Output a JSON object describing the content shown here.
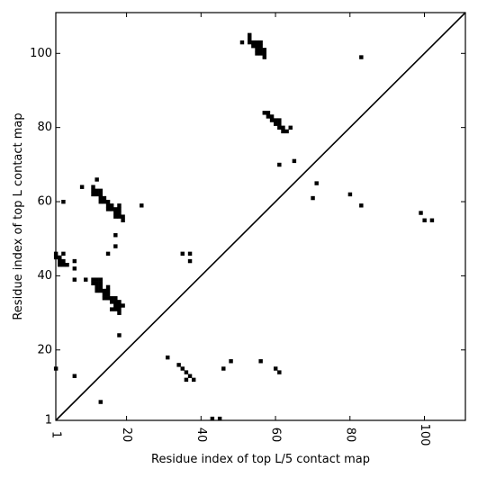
{
  "chart_data": {
    "type": "scatter",
    "xlabel": "Residue index of top L/5 contact map",
    "ylabel": "Residue index of top L contact map",
    "xlim": [
      1,
      111
    ],
    "ylim": [
      1,
      111
    ],
    "x_ticks": [
      {
        "value": 1,
        "label": "1"
      },
      {
        "value": 20,
        "label": "20"
      },
      {
        "value": 40,
        "label": "40"
      },
      {
        "value": 60,
        "label": "60"
      },
      {
        "value": 80,
        "label": "80"
      },
      {
        "value": 100,
        "label": "100"
      }
    ],
    "y_ticks": [
      {
        "value": 1,
        "label": "1"
      },
      {
        "value": 20,
        "label": "20"
      },
      {
        "value": 40,
        "label": "40"
      },
      {
        "value": 60,
        "label": "60"
      },
      {
        "value": 80,
        "label": "80"
      },
      {
        "value": 100,
        "label": "100"
      }
    ],
    "diagonal": true,
    "grid": false,
    "marker_color": "#000000",
    "upper_points": [
      [
        51,
        103
      ],
      [
        53,
        105
      ],
      [
        53,
        104
      ],
      [
        53,
        103
      ],
      [
        54,
        103
      ],
      [
        54,
        102
      ],
      [
        55,
        103
      ],
      [
        55,
        102
      ],
      [
        55,
        101
      ],
      [
        55,
        100
      ],
      [
        56,
        103
      ],
      [
        56,
        102
      ],
      [
        56,
        101
      ],
      [
        56,
        100
      ],
      [
        57,
        101
      ],
      [
        57,
        100
      ],
      [
        57,
        99
      ],
      [
        83,
        99
      ],
      [
        57,
        84
      ],
      [
        58,
        84
      ],
      [
        58,
        83
      ],
      [
        59,
        83
      ],
      [
        59,
        82
      ],
      [
        60,
        82
      ],
      [
        60,
        81
      ],
      [
        61,
        82
      ],
      [
        61,
        81
      ],
      [
        61,
        80
      ],
      [
        62,
        80
      ],
      [
        62,
        79
      ],
      [
        63,
        79
      ],
      [
        64,
        80
      ],
      [
        65,
        71
      ],
      [
        61,
        70
      ],
      [
        71,
        65
      ],
      [
        70,
        61
      ],
      [
        80,
        62
      ],
      [
        83,
        59
      ],
      [
        99,
        57
      ],
      [
        100,
        55
      ],
      [
        102,
        55
      ],
      [
        1,
        46
      ],
      [
        1,
        45
      ],
      [
        2,
        45
      ],
      [
        2,
        44
      ],
      [
        2,
        43
      ],
      [
        3,
        46
      ],
      [
        3,
        44
      ],
      [
        3,
        43
      ],
      [
        4,
        43
      ],
      [
        6,
        44
      ],
      [
        6,
        42
      ],
      [
        6,
        39
      ],
      [
        9,
        39
      ],
      [
        3,
        60
      ],
      [
        8,
        64
      ],
      [
        12,
        66
      ],
      [
        11,
        64
      ],
      [
        11,
        63
      ],
      [
        11,
        62
      ],
      [
        12,
        63
      ],
      [
        12,
        62
      ],
      [
        13,
        63
      ],
      [
        13,
        62
      ],
      [
        13,
        61
      ],
      [
        13,
        60
      ],
      [
        14,
        61
      ],
      [
        14,
        60
      ],
      [
        15,
        60
      ],
      [
        15,
        59
      ],
      [
        15,
        58
      ],
      [
        16,
        59
      ],
      [
        16,
        58
      ],
      [
        17,
        58
      ],
      [
        17,
        57
      ],
      [
        17,
        56
      ],
      [
        18,
        59
      ],
      [
        18,
        58
      ],
      [
        18,
        57
      ],
      [
        18,
        56
      ],
      [
        19,
        56
      ],
      [
        19,
        55
      ],
      [
        24,
        59
      ],
      [
        17,
        51
      ],
      [
        17,
        48
      ],
      [
        15,
        46
      ],
      [
        11,
        39
      ],
      [
        11,
        38
      ],
      [
        12,
        39
      ],
      [
        12,
        38
      ],
      [
        12,
        37
      ],
      [
        12,
        36
      ],
      [
        13,
        39
      ],
      [
        13,
        38
      ],
      [
        13,
        37
      ],
      [
        13,
        36
      ],
      [
        14,
        36
      ],
      [
        14,
        35
      ],
      [
        14,
        34
      ],
      [
        15,
        37
      ],
      [
        15,
        36
      ],
      [
        15,
        35
      ],
      [
        15,
        34
      ],
      [
        16,
        34
      ],
      [
        16,
        33
      ],
      [
        16,
        31
      ],
      [
        17,
        34
      ],
      [
        17,
        33
      ],
      [
        17,
        32
      ],
      [
        17,
        31
      ],
      [
        18,
        33
      ],
      [
        18,
        32
      ],
      [
        18,
        31
      ],
      [
        18,
        30
      ],
      [
        19,
        32
      ],
      [
        18,
        24
      ],
      [
        35,
        46
      ],
      [
        37,
        46
      ],
      [
        37,
        44
      ]
    ],
    "lower_points": [
      [
        1,
        15
      ],
      [
        6,
        13
      ],
      [
        13,
        6
      ],
      [
        31,
        18
      ],
      [
        34,
        16
      ],
      [
        35,
        15
      ],
      [
        36,
        14
      ],
      [
        36,
        12
      ],
      [
        37,
        13
      ],
      [
        38,
        12
      ],
      [
        43,
        1.5
      ],
      [
        45,
        1.5
      ],
      [
        46,
        15
      ],
      [
        48,
        17
      ],
      [
        56,
        17
      ],
      [
        60,
        15
      ],
      [
        61,
        14
      ]
    ]
  }
}
